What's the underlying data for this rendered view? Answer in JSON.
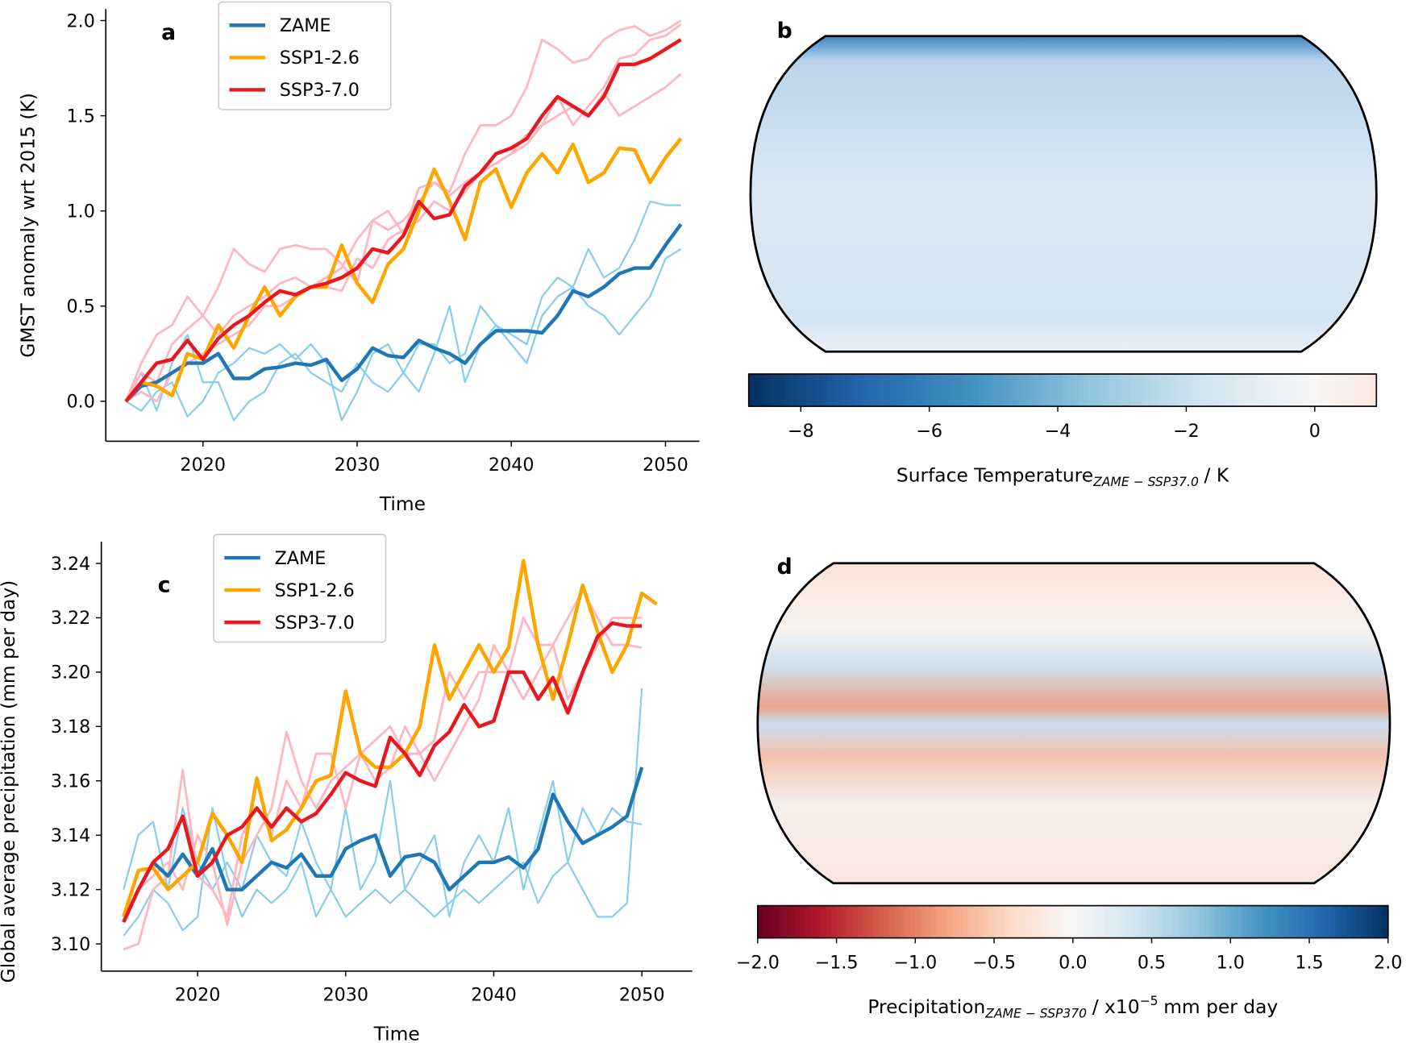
{
  "chart_data": [
    {
      "type": "line",
      "panel_label": "a",
      "xlabel": "Time",
      "ylabel": "GMST anomaly wrt 2015 (K)",
      "x": [
        2015,
        2016,
        2017,
        2018,
        2019,
        2020,
        2021,
        2022,
        2023,
        2024,
        2025,
        2026,
        2027,
        2028,
        2029,
        2030,
        2031,
        2032,
        2033,
        2034,
        2035,
        2036,
        2037,
        2038,
        2039,
        2040,
        2041,
        2042,
        2043,
        2044,
        2045,
        2046,
        2047,
        2048,
        2049,
        2050,
        2051
      ],
      "xlim": [
        2013.7,
        2052.2
      ],
      "xticks": [
        2020,
        2030,
        2040,
        2050
      ],
      "ylim": [
        -0.21,
        2.06
      ],
      "yticks": [
        {
          "value": 0,
          "label": "0.0"
        },
        0.5,
        {
          "value": 1,
          "label": "1.0"
        },
        1.5,
        {
          "value": 2,
          "label": "2.0"
        }
      ],
      "legend": "upper center",
      "series": [
        {
          "color": "#87ceeb",
          "linewidth": 2,
          "values": [
            0,
            0.15,
            -0.05,
            0.2,
            0.35,
            0.1,
            0.1,
            -0.1,
            0,
            0.05,
            0.2,
            0.25,
            0.15,
            0.1,
            0.05,
            0.2,
            0.1,
            0.05,
            0.15,
            0.3,
            0.3,
            0.2,
            0.25,
            0.5,
            0.4,
            0.35,
            0.3,
            0.55,
            0.65,
            0.6,
            0.8,
            0.65,
            0.7,
            0.85,
            1.05,
            1.03,
            1.03
          ]
        },
        {
          "color": "#87ceeb",
          "linewidth": 2,
          "values": [
            0,
            -0.05,
            0.05,
            0.1,
            -0.08,
            0,
            0.15,
            0.2,
            0.28,
            0.25,
            0.3,
            0.22,
            0.3,
            0.2,
            -0.1,
            0.05,
            0.25,
            0.3,
            0.15,
            0.05,
            0.25,
            0.5,
            0.1,
            0.3,
            0.4,
            0.3,
            0.2,
            0.45,
            0.55,
            0.6,
            0.5,
            0.45,
            0.35,
            0.45,
            0.55,
            0.75,
            0.8
          ]
        },
        {
          "color": "#ffb6c1",
          "linewidth": 2.5,
          "values": [
            0,
            0.2,
            0.35,
            0.4,
            0.55,
            0.45,
            0.6,
            0.8,
            0.72,
            0.68,
            0.8,
            0.82,
            0.8,
            0.8,
            0.72,
            0.62,
            0.95,
            0.9,
            0.95,
            1.05,
            1.15,
            1.1,
            1.3,
            1.45,
            1.45,
            1.5,
            1.65,
            1.9,
            1.85,
            1.78,
            1.8,
            1.9,
            1.95,
            1.97,
            1.92,
            1.95,
            2.0
          ]
        },
        {
          "color": "#ffb6c1",
          "linewidth": 2.5,
          "values": [
            0,
            0.15,
            0.1,
            0.3,
            0.38,
            0.45,
            0.35,
            0.45,
            0.5,
            0.55,
            0.62,
            0.65,
            0.6,
            0.65,
            0.7,
            0.85,
            0.95,
            1.0,
            0.88,
            1.12,
            1.15,
            1.08,
            1.15,
            1.2,
            1.25,
            1.3,
            1.4,
            1.45,
            1.6,
            1.45,
            1.55,
            1.65,
            1.8,
            1.82,
            1.9,
            1.92,
            1.98
          ]
        },
        {
          "color": "#ffb6c1",
          "linewidth": 2.5,
          "values": [
            0,
            0.05,
            0,
            0.15,
            0.2,
            0.25,
            0.3,
            0.35,
            0.4,
            0.5,
            0.5,
            0.55,
            0.6,
            0.6,
            0.58,
            0.75,
            0.7,
            0.85,
            0.9,
            0.95,
            1.05,
            1.0,
            1.1,
            1.2,
            1.25,
            1.3,
            1.35,
            1.45,
            1.5,
            1.55,
            1.5,
            1.62,
            1.5,
            1.55,
            1.6,
            1.65,
            1.72
          ]
        },
        {
          "name": "ZAME",
          "color": "#1f77b4",
          "linewidth": 4,
          "values": [
            0,
            0.08,
            0.1,
            0.15,
            0.2,
            0.2,
            0.25,
            0.12,
            0.12,
            0.17,
            0.18,
            0.2,
            0.19,
            0.22,
            0.11,
            0.17,
            0.28,
            0.24,
            0.23,
            0.32,
            0.28,
            0.25,
            0.2,
            0.3,
            0.37,
            0.37,
            0.37,
            0.36,
            0.45,
            0.58,
            0.55,
            0.6,
            0.67,
            0.7,
            0.7,
            0.82,
            0.93
          ]
        },
        {
          "name": "SSP1-2.6",
          "color": "#ffa500",
          "linewidth": 4,
          "values": [
            0,
            0.1,
            0.08,
            0.03,
            0.25,
            0.22,
            0.4,
            0.28,
            0.45,
            0.6,
            0.45,
            0.55,
            0.6,
            0.6,
            0.82,
            0.62,
            0.52,
            0.72,
            0.8,
            1.0,
            1.22,
            1.05,
            0.85,
            1.15,
            1.22,
            1.02,
            1.2,
            1.3,
            1.2,
            1.35,
            1.15,
            1.2,
            1.33,
            1.32,
            1.15,
            1.28,
            1.38
          ]
        },
        {
          "name": "SSP3-7.0",
          "color": "#e8191e",
          "linewidth": 4,
          "values": [
            0,
            0.1,
            0.2,
            0.22,
            0.32,
            0.22,
            0.33,
            0.4,
            0.45,
            0.52,
            0.58,
            0.56,
            0.6,
            0.62,
            0.65,
            0.7,
            0.8,
            0.78,
            0.87,
            1.05,
            0.96,
            0.98,
            1.13,
            1.2,
            1.3,
            1.33,
            1.38,
            1.5,
            1.6,
            1.55,
            1.5,
            1.6,
            1.77,
            1.77,
            1.8,
            1.85,
            1.9
          ]
        }
      ]
    },
    {
      "type": "map",
      "panel_label": "b",
      "colormap": "RdBu_r",
      "clim": [
        -8.81,
        0.96
      ],
      "cticks": [
        {
          "value": -8,
          "label": "−8"
        },
        {
          "value": -6,
          "label": "−6"
        },
        {
          "value": -4,
          "label": "−4"
        },
        {
          "value": -2,
          "label": "−2"
        },
        0
      ],
      "colorbar_label": {
        "text": "Surface Temperature",
        "subscript": "ZAME − SSP37.0",
        "suffix": "/ K"
      }
    },
    {
      "type": "line",
      "panel_label": "c",
      "xlabel": "Time",
      "ylabel": "Global average precipitation (mm per day)",
      "x": [
        2015,
        2016,
        2017,
        2018,
        2019,
        2020,
        2021,
        2022,
        2023,
        2024,
        2025,
        2026,
        2027,
        2028,
        2029,
        2030,
        2031,
        2032,
        2033,
        2034,
        2035,
        2036,
        2037,
        2038,
        2039,
        2040,
        2041,
        2042,
        2043,
        2044,
        2045,
        2046,
        2047,
        2048,
        2049,
        2050,
        2051
      ],
      "xlim": [
        2013.5,
        2053.4
      ],
      "xticks": [
        2020,
        2030,
        2040,
        2050
      ],
      "ylim": [
        3.09,
        3.248
      ],
      "yticks": [
        {
          "value": 3.1,
          "label": "3.10"
        },
        3.12,
        3.14,
        3.16,
        3.18,
        {
          "value": 3.2,
          "label": "3.20"
        },
        3.22,
        3.24
      ],
      "legend": "upper center",
      "series": [
        {
          "color": "#87ceeb",
          "linewidth": 2,
          "values": [
            3.12,
            3.14,
            3.145,
            3.12,
            3.15,
            3.13,
            3.12,
            3.13,
            3.12,
            3.14,
            3.13,
            3.125,
            3.145,
            3.13,
            3.12,
            3.15,
            3.12,
            3.13,
            3.16,
            3.12,
            3.13,
            3.14,
            3.11,
            3.13,
            3.14,
            3.13,
            3.15,
            3.12,
            3.14,
            3.16,
            3.13,
            3.15,
            3.14,
            3.15,
            3.145,
            3.144,
            null
          ]
        },
        {
          "color": "#87ceeb",
          "linewidth": 2,
          "values": [
            3.103,
            3.11,
            3.12,
            3.115,
            3.105,
            3.11,
            3.15,
            3.125,
            3.11,
            3.12,
            3.115,
            3.12,
            3.13,
            3.11,
            3.12,
            3.11,
            3.115,
            3.12,
            3.115,
            3.12,
            3.115,
            3.11,
            3.115,
            3.12,
            3.115,
            3.12,
            3.125,
            3.13,
            3.115,
            3.125,
            3.13,
            3.12,
            3.11,
            3.11,
            3.115,
            3.194,
            null
          ]
        },
        {
          "color": "#ffb6c1",
          "linewidth": 2.5,
          "values": [
            3.098,
            3.1,
            3.12,
            3.125,
            3.164,
            3.125,
            3.12,
            3.11,
            3.14,
            3.15,
            3.14,
            3.16,
            3.15,
            3.17,
            3.17,
            3.15,
            3.17,
            3.175,
            3.18,
            3.17,
            3.17,
            3.175,
            3.2,
            3.19,
            3.2,
            3.2,
            3.2,
            3.22,
            3.21,
            3.21,
            3.22,
            3.23,
            3.22,
            3.21,
            3.21,
            3.209,
            null
          ]
        },
        {
          "color": "#ffb6c1",
          "linewidth": 2.5,
          "values": [
            3.11,
            3.12,
            3.125,
            3.13,
            3.12,
            3.14,
            3.13,
            3.107,
            3.13,
            3.14,
            3.15,
            3.178,
            3.16,
            3.15,
            3.16,
            3.165,
            3.17,
            3.16,
            3.165,
            3.18,
            3.17,
            3.16,
            3.17,
            3.18,
            3.19,
            3.21,
            3.2,
            3.19,
            3.2,
            3.21,
            3.19,
            3.2,
            3.21,
            3.22,
            3.22,
            3.22,
            null
          ]
        },
        {
          "name": "ZAME",
          "color": "#1f77b4",
          "linewidth": 4,
          "values": [
            3.108,
            3.12,
            3.13,
            3.125,
            3.133,
            3.125,
            3.135,
            3.12,
            3.12,
            3.125,
            3.13,
            3.128,
            3.133,
            3.125,
            3.125,
            3.135,
            3.138,
            3.14,
            3.125,
            3.132,
            3.133,
            3.13,
            3.12,
            3.125,
            3.13,
            3.13,
            3.132,
            3.128,
            3.135,
            3.155,
            3.145,
            3.137,
            3.14,
            3.143,
            3.147,
            3.165,
            null
          ]
        },
        {
          "name": "SSP1-2.6",
          "color": "#ffa500",
          "linewidth": 4,
          "values": [
            3.11,
            3.127,
            3.128,
            3.12,
            3.125,
            3.13,
            3.148,
            3.14,
            3.13,
            3.161,
            3.138,
            3.142,
            3.15,
            3.16,
            3.162,
            3.193,
            3.17,
            3.165,
            3.165,
            3.17,
            3.18,
            3.21,
            3.19,
            3.2,
            3.21,
            3.2,
            3.209,
            3.241,
            3.21,
            3.19,
            3.21,
            3.232,
            3.215,
            3.2,
            3.21,
            3.229,
            3.225
          ]
        },
        {
          "name": "SSP3-7.0",
          "color": "#e8191e",
          "linewidth": 4,
          "values": [
            3.108,
            3.12,
            3.13,
            3.135,
            3.147,
            3.125,
            3.13,
            3.14,
            3.143,
            3.15,
            3.143,
            3.15,
            3.145,
            3.148,
            3.155,
            3.163,
            3.16,
            3.158,
            3.176,
            3.17,
            3.162,
            3.173,
            3.178,
            3.188,
            3.18,
            3.182,
            3.2,
            3.2,
            3.19,
            3.198,
            3.185,
            3.2,
            3.213,
            3.218,
            3.217,
            3.217,
            null
          ]
        }
      ]
    },
    {
      "type": "map",
      "panel_label": "d",
      "colormap": "RdBu",
      "clim": [
        -2,
        2
      ],
      "cticks": [
        {
          "value": -2,
          "label": "−2.0"
        },
        {
          "value": -1.5,
          "label": "−1.5"
        },
        {
          "value": -1,
          "label": "−1.0"
        },
        {
          "value": -0.5,
          "label": "−0.5"
        },
        {
          "value": 0,
          "label": "0.0"
        },
        0.5,
        {
          "value": 1,
          "label": "1.0"
        },
        1.5,
        {
          "value": 2,
          "label": "2.0"
        }
      ],
      "colorbar_label": {
        "text": "Precipitation",
        "subscript": "ZAME − SSP370",
        "suffix": "/ x10",
        "superscript": "−5",
        "suffix2": "mm per day"
      }
    }
  ]
}
